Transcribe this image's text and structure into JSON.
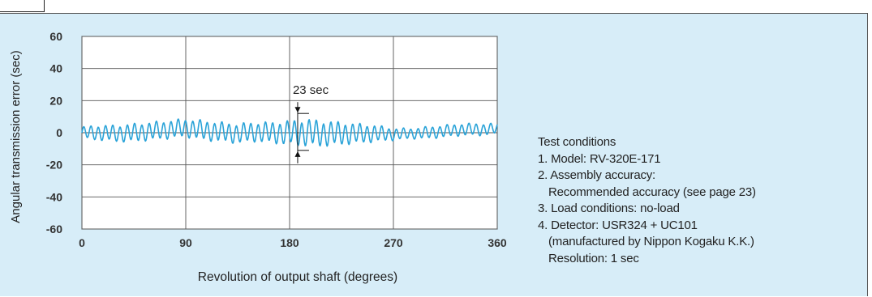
{
  "chart_data": {
    "type": "line",
    "title": "",
    "xlabel": "Revolution of output shaft (degrees)",
    "ylabel": "Angular transmission error (sec)",
    "xlim": [
      0,
      360
    ],
    "ylim": [
      -60,
      60
    ],
    "x_ticks": [
      "0",
      "90",
      "180",
      "270",
      "360"
    ],
    "y_ticks": [
      "60",
      "40",
      "20",
      "0",
      "-20",
      "-40",
      "-60"
    ],
    "grid": true,
    "annotation": {
      "label": "23 sec",
      "x": 187,
      "y_top": 12,
      "y_bottom": -11
    },
    "series": [
      {
        "name": "",
        "color": "#2aa3d8",
        "x": [
          0,
          15,
          30,
          45,
          60,
          75,
          90,
          105,
          120,
          135,
          150,
          165,
          180,
          195,
          210,
          225,
          240,
          255,
          270,
          285,
          300,
          315,
          330,
          345,
          360
        ],
        "min": [
          -4,
          -5,
          -6,
          -6,
          -5,
          -4,
          -3,
          -5,
          -6,
          -7,
          -6,
          -7,
          -8,
          -9,
          -9,
          -8,
          -7,
          -6,
          -5,
          -4,
          -4,
          -3,
          -2,
          -2,
          -1
        ],
        "max": [
          4,
          5,
          5,
          6,
          7,
          8,
          9,
          8,
          7,
          6,
          7,
          7,
          8,
          9,
          8,
          7,
          6,
          5,
          3,
          3,
          4,
          5,
          6,
          6,
          6
        ]
      }
    ]
  },
  "conditions": {
    "heading": "Test conditions",
    "items": [
      "1. Model: RV-320E-171",
      "2. Assembly accuracy:",
      "Recommended accuracy (see page 23)",
      "3. Load conditions: no-load",
      "4. Detector: USR324 + UC101",
      "(manufactured by Nippon Kogaku K.K.)",
      "Resolution: 1 sec"
    ]
  }
}
